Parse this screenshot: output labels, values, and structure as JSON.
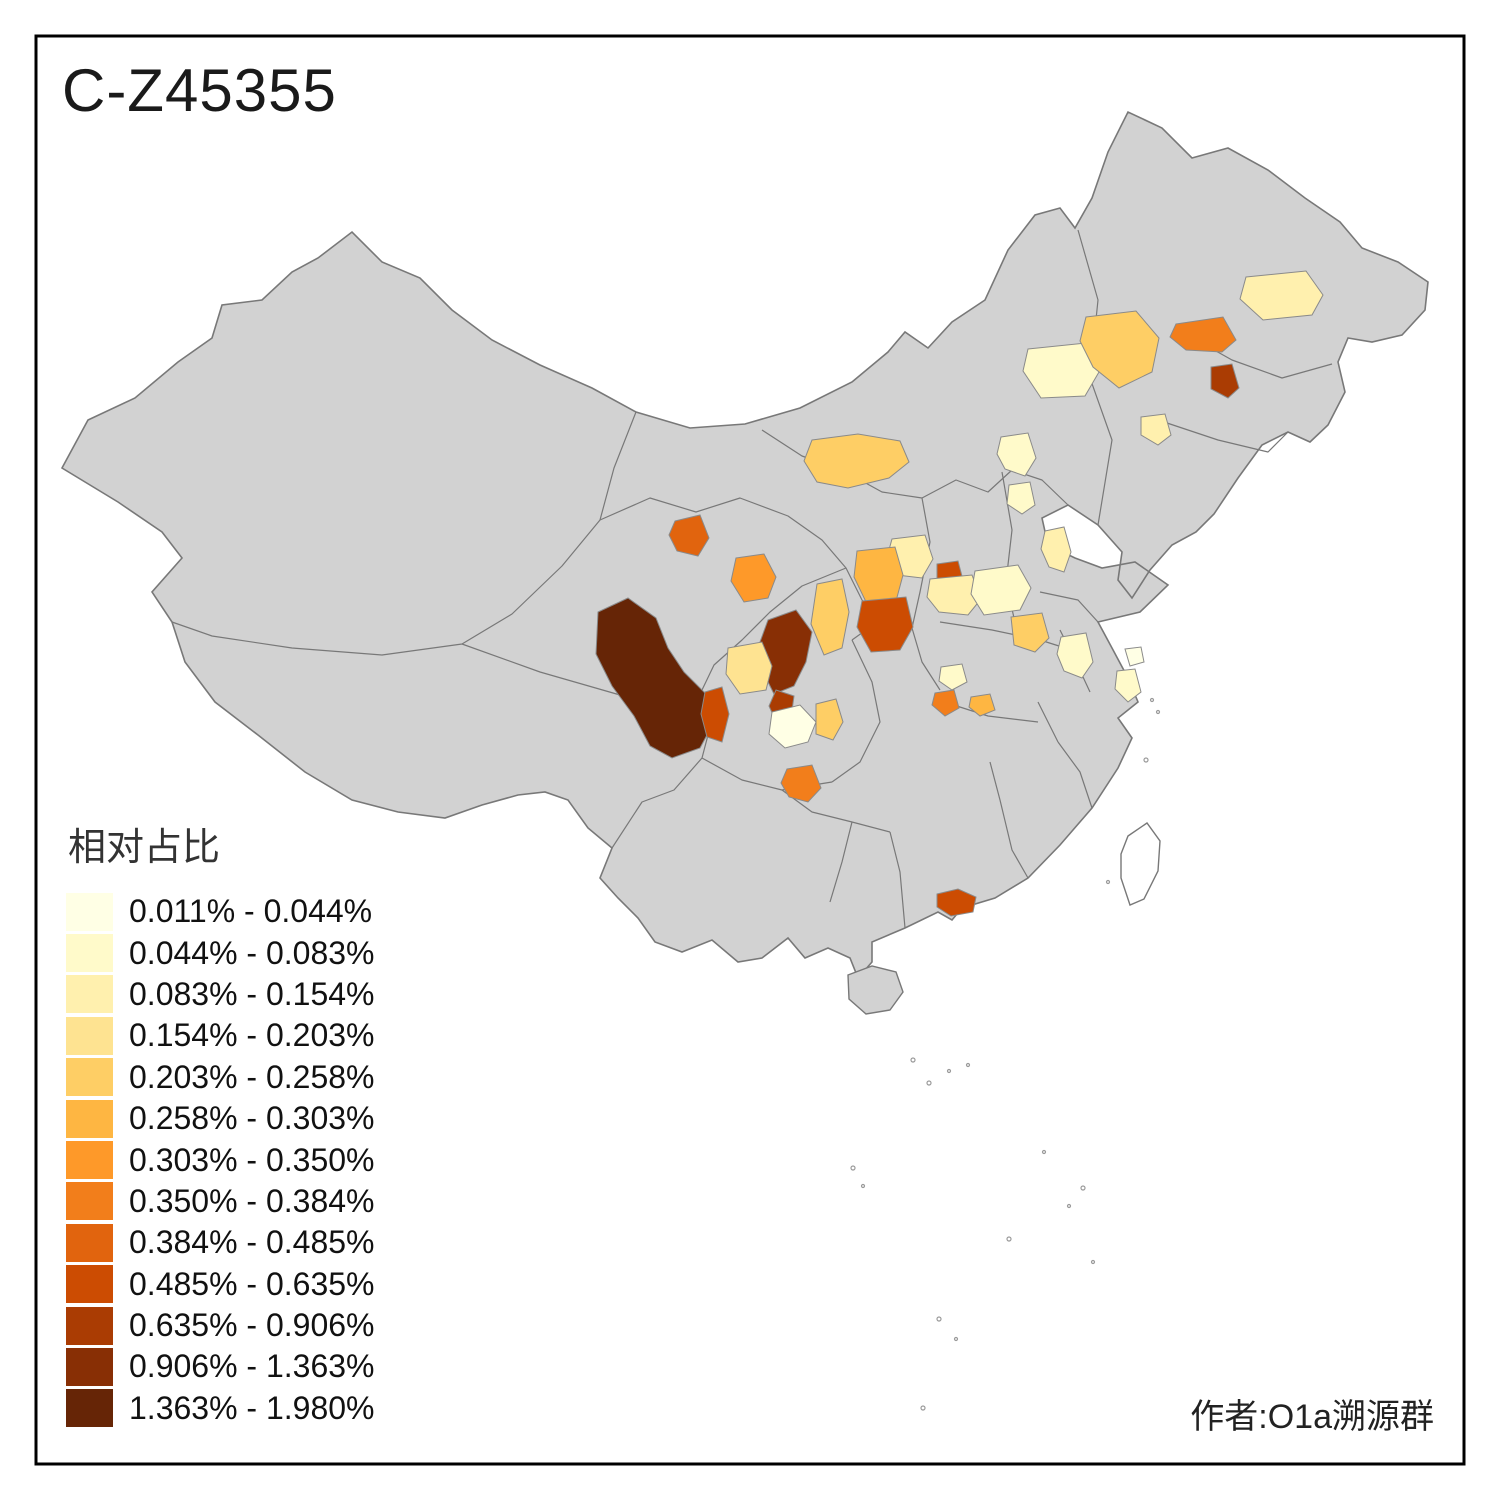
{
  "title": "C-Z45355",
  "author": "作者:O1a溯源群",
  "legend": {
    "title": "相对占比",
    "classes": [
      {
        "label": "0.011% - 0.044%",
        "color": "#FFFFE5"
      },
      {
        "label": "0.044% - 0.083%",
        "color": "#FFFACA"
      },
      {
        "label": "0.083% - 0.154%",
        "color": "#FFF0AE"
      },
      {
        "label": "0.154% - 0.203%",
        "color": "#FEE391"
      },
      {
        "label": "0.203% - 0.258%",
        "color": "#FECE65"
      },
      {
        "label": "0.258% - 0.303%",
        "color": "#FEB642"
      },
      {
        "label": "0.303% - 0.350%",
        "color": "#FE9929"
      },
      {
        "label": "0.350% - 0.384%",
        "color": "#F27E1B"
      },
      {
        "label": "0.384% - 0.485%",
        "color": "#E1640E"
      },
      {
        "label": "0.485% - 0.635%",
        "color": "#CC4C02"
      },
      {
        "label": "0.635% - 0.906%",
        "color": "#AA3C03"
      },
      {
        "label": "0.906% - 1.363%",
        "color": "#882F05"
      },
      {
        "label": "1.363% - 1.980%",
        "color": "#662506"
      }
    ]
  },
  "map": {
    "land_fill": "#D2D2D2",
    "border_color": "#787878",
    "frame_color": "#000000",
    "sea_fill": "#FFFFFF",
    "highlights": [
      {
        "region": "r1",
        "class": 12
      },
      {
        "region": "r2",
        "class": 11
      },
      {
        "region": "r3",
        "class": 10
      },
      {
        "region": "r4",
        "class": 9
      },
      {
        "region": "r5",
        "class": 0
      },
      {
        "region": "r6",
        "class": 4
      },
      {
        "region": "r7",
        "class": 3
      },
      {
        "region": "r8",
        "class": 6
      },
      {
        "region": "r9",
        "class": 8
      },
      {
        "region": "r10",
        "class": 4
      },
      {
        "region": "r11",
        "class": 2
      },
      {
        "region": "r12",
        "class": 5
      },
      {
        "region": "r13",
        "class": 9
      },
      {
        "region": "r14",
        "class": 4
      },
      {
        "region": "r15",
        "class": 9
      },
      {
        "region": "r16",
        "class": 2
      },
      {
        "region": "r17",
        "class": 1
      },
      {
        "region": "r18",
        "class": 4
      },
      {
        "region": "r19",
        "class": 1
      },
      {
        "region": "r20",
        "class": 1
      },
      {
        "region": "r21",
        "class": 1
      },
      {
        "region": "r22",
        "class": 7
      },
      {
        "region": "r23",
        "class": 5
      },
      {
        "region": "r24",
        "class": 7
      },
      {
        "region": "r25",
        "class": 9
      },
      {
        "region": "r26",
        "class": 1
      },
      {
        "region": "r27",
        "class": 1
      },
      {
        "region": "r28",
        "class": 2
      },
      {
        "region": "r29",
        "class": 1
      },
      {
        "region": "r30",
        "class": 4
      },
      {
        "region": "r31",
        "class": 7
      },
      {
        "region": "r32",
        "class": 10
      },
      {
        "region": "r33",
        "class": 2
      },
      {
        "region": "r34",
        "class": 2
      },
      {
        "region": "r35",
        "class": 0
      }
    ]
  }
}
